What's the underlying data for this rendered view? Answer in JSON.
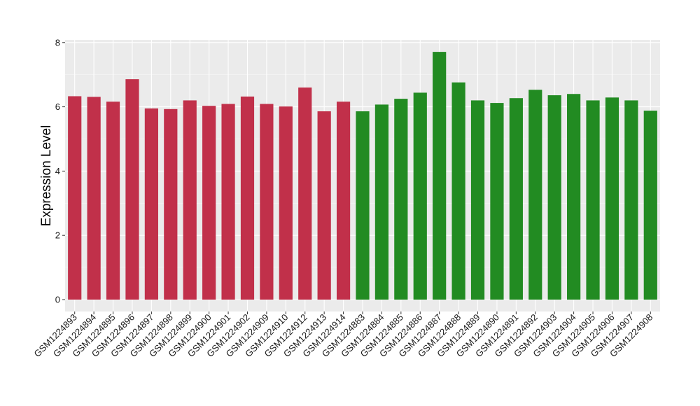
{
  "chart_data": {
    "type": "bar",
    "title": "",
    "xlabel": "",
    "ylabel": "Expression Level",
    "ylim": [
      0,
      8.1
    ],
    "yticks": [
      0,
      2,
      4,
      6,
      8
    ],
    "grid": true,
    "legend": "none",
    "panel_color": "#EBEBEB",
    "categories": [
      "GSM1224893",
      "GSM1224894",
      "GSM1224895",
      "GSM1224896",
      "GSM1224897",
      "GSM1224898",
      "GSM1224899",
      "GSM1224900",
      "GSM1224901",
      "GSM1224902",
      "GSM1224909",
      "GSM1224910",
      "GSM1224912",
      "GSM1224913",
      "GSM1224914",
      "GSM1224883",
      "GSM1224884",
      "GSM1224885",
      "GSM1224886",
      "GSM1224887",
      "GSM1224888",
      "GSM1224889",
      "GSM1224890",
      "GSM1224891",
      "GSM1224892",
      "GSM1224903",
      "GSM1224904",
      "GSM1224905",
      "GSM1224906",
      "GSM1224907",
      "GSM1224908"
    ],
    "values": [
      6.33,
      6.31,
      6.16,
      6.86,
      5.95,
      5.93,
      6.2,
      6.03,
      6.09,
      6.32,
      6.09,
      6.01,
      6.6,
      5.86,
      6.16,
      5.86,
      6.07,
      6.25,
      6.44,
      7.71,
      6.76,
      6.2,
      6.12,
      6.27,
      6.53,
      6.36,
      6.4,
      6.2,
      6.29,
      6.2,
      5.88
    ],
    "colors": [
      "#C1304A",
      "#C1304A",
      "#C1304A",
      "#C1304A",
      "#C1304A",
      "#C1304A",
      "#C1304A",
      "#C1304A",
      "#C1304A",
      "#C1304A",
      "#C1304A",
      "#C1304A",
      "#C1304A",
      "#C1304A",
      "#C1304A",
      "#228B22",
      "#228B22",
      "#228B22",
      "#228B22",
      "#228B22",
      "#228B22",
      "#228B22",
      "#228B22",
      "#228B22",
      "#228B22",
      "#228B22",
      "#228B22",
      "#228B22",
      "#228B22",
      "#228B22",
      "#228B22"
    ]
  }
}
